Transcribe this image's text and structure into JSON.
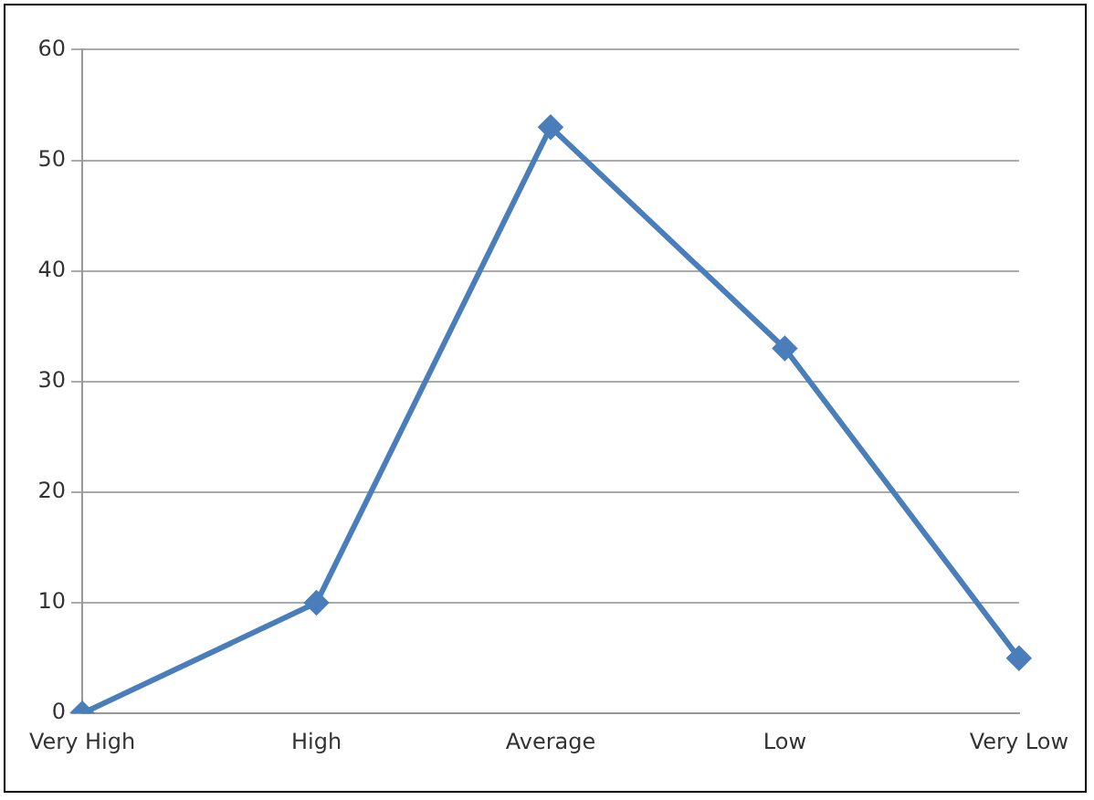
{
  "chart_data": {
    "type": "line",
    "categories": [
      "Very High",
      "High",
      "Average",
      "Low",
      "Very Low"
    ],
    "series": [
      {
        "color": "#4a7ebb",
        "values": [
          0,
          10,
          53,
          33,
          5
        ]
      }
    ],
    "ylim": [
      0,
      60
    ],
    "yticks": [
      0,
      10,
      20,
      30,
      40,
      50,
      60
    ],
    "grid": "y",
    "legend": false,
    "marker": "diamond",
    "line_style": "solid"
  }
}
